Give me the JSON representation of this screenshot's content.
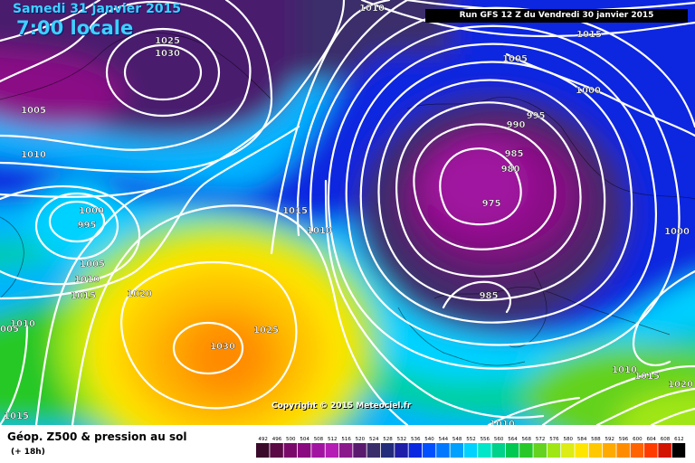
{
  "header": {
    "date": "Samedi 31 janvier 2015",
    "time": "7:00 locale",
    "run": "Run GFS 12 Z du Vendredi 30 janvier 2015"
  },
  "copyright": "Copyright © 2015 Meteociel.fr",
  "legend": {
    "title": "Géop. Z500 & pression au sol",
    "subtitle": "(+ 18h)",
    "scale": {
      "values": [
        492,
        496,
        500,
        504,
        508,
        512,
        516,
        520,
        524,
        528,
        532,
        536,
        540,
        544,
        548,
        552,
        556,
        560,
        564,
        568,
        572,
        576,
        580,
        584,
        588,
        592,
        596,
        600,
        604,
        608,
        612
      ],
      "colors": [
        "#3a0a2a",
        "#5a0a45",
        "#7a0a6a",
        "#8a0a80",
        "#a014a0",
        "#b41eb4",
        "#8a1a8c",
        "#5a1a6e",
        "#3a2e6a",
        "#232c7a",
        "#1e1ea8",
        "#0a28e0",
        "#0050ff",
        "#0078ff",
        "#00a0ff",
        "#00d2ff",
        "#00e6c8",
        "#00d28c",
        "#00c850",
        "#28c828",
        "#64d21e",
        "#a0e614",
        "#dcec14",
        "#ffe600",
        "#ffc800",
        "#ffaa00",
        "#ff8c00",
        "#ff6400",
        "#ff3c00",
        "#d21400",
        "#000000"
      ]
    }
  },
  "isobar_labels": [
    "1010",
    "1015",
    "1025",
    "1030",
    "1005",
    "1000",
    "995",
    "1010",
    "1005",
    "1010",
    "1015",
    "1020",
    "1010",
    "1005",
    "1015",
    "1015",
    "1010",
    "1025",
    "1030",
    "1005",
    "1000",
    "995",
    "990",
    "985",
    "980",
    "975",
    "985",
    "1000",
    "1010",
    "1015",
    "1020",
    "1010"
  ]
}
